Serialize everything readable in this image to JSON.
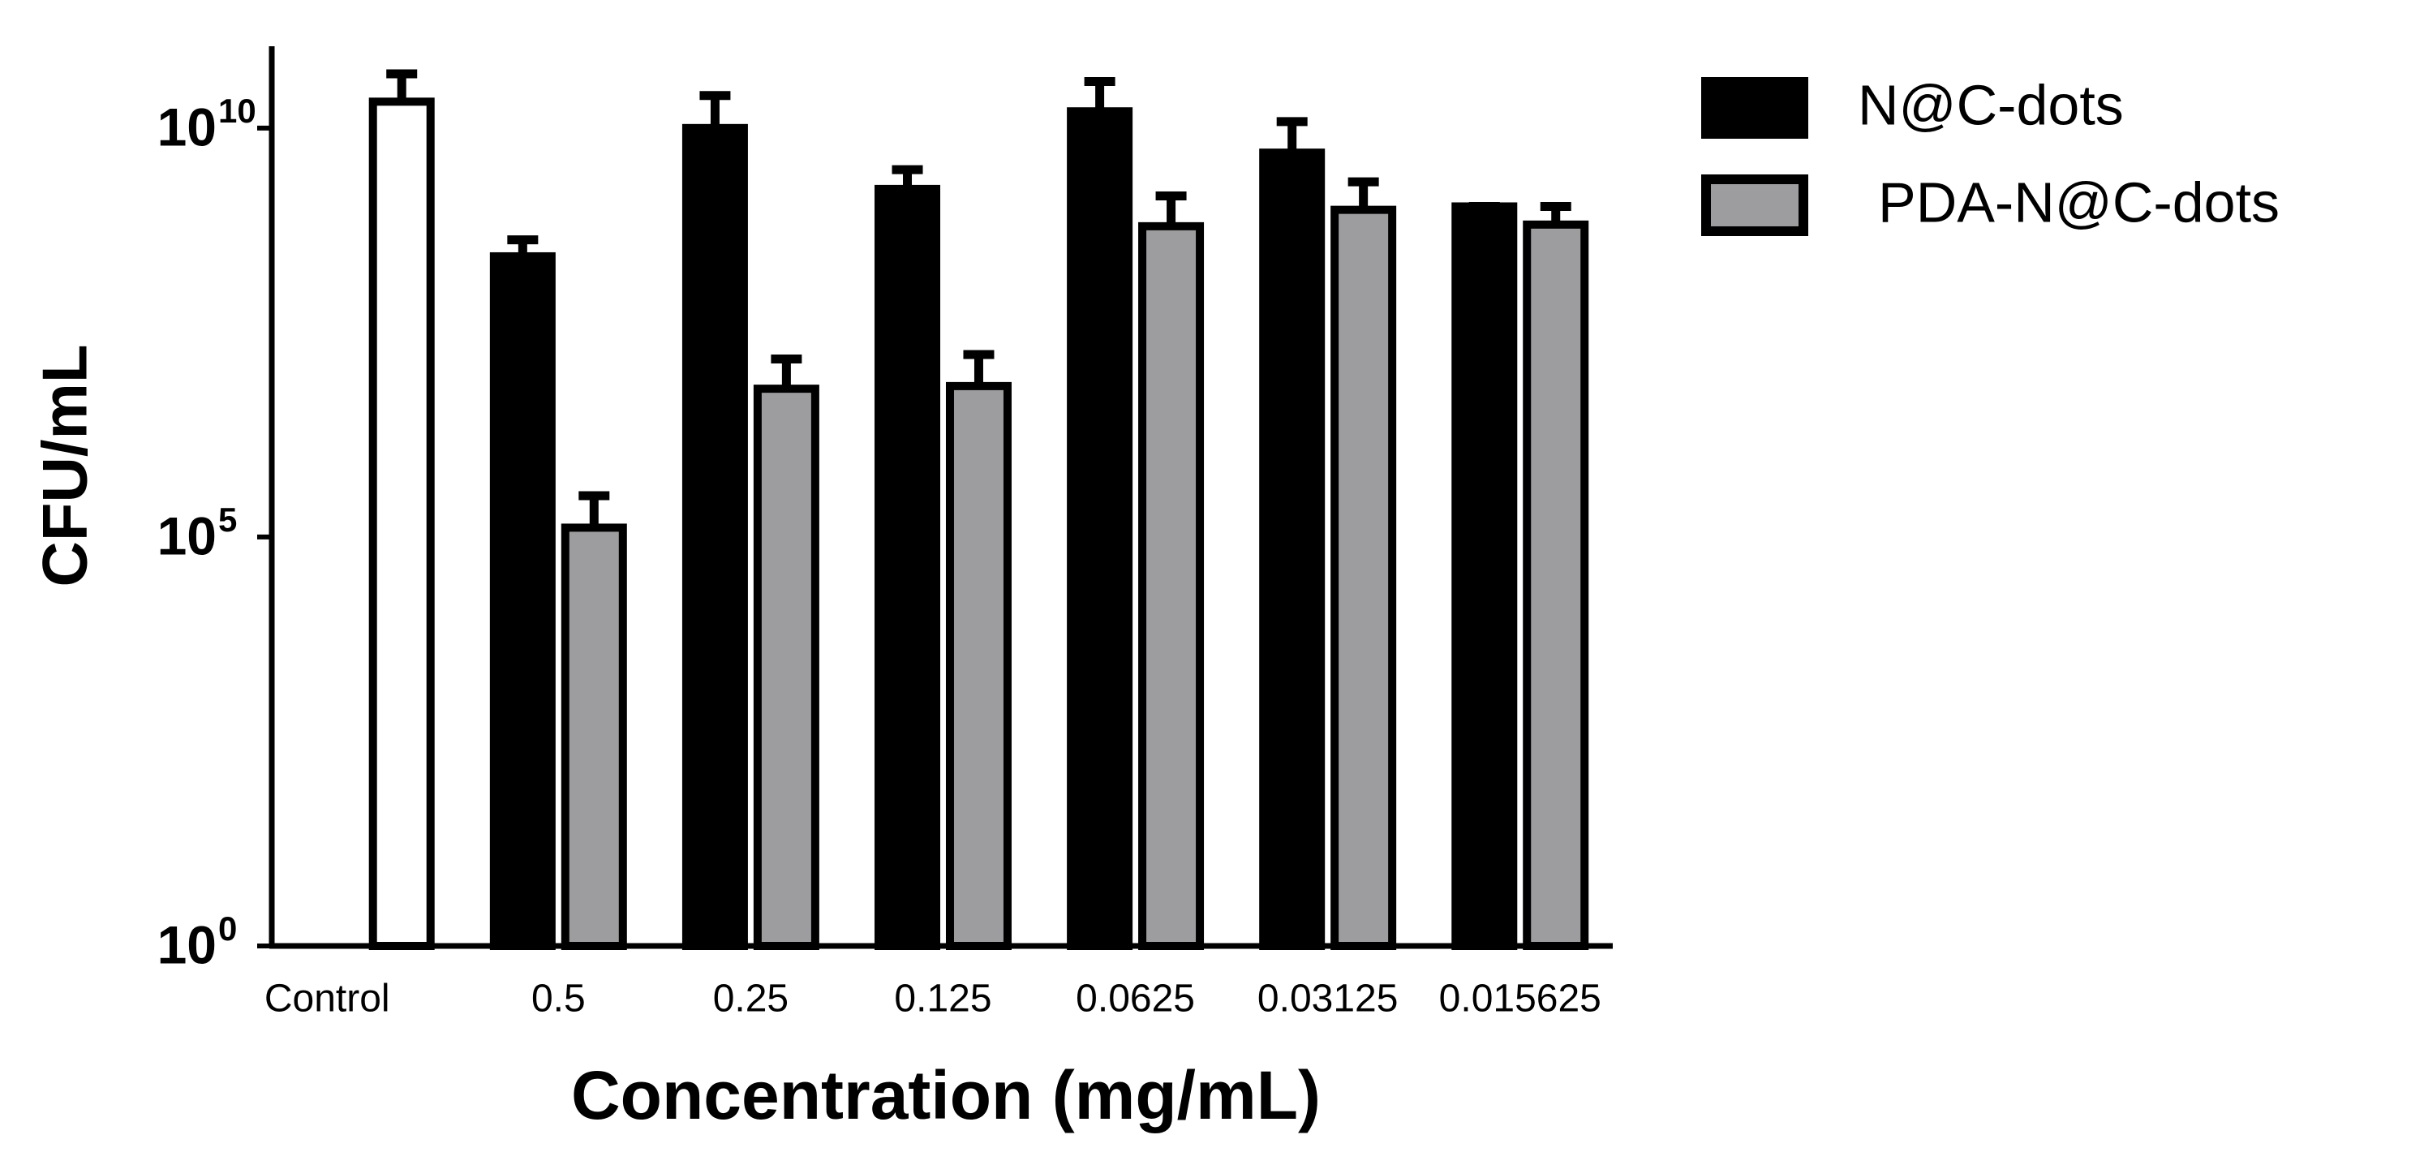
{
  "chart_data": {
    "type": "bar",
    "x_label": "Concentration (mg/mL)",
    "y_label": "CFU/mL",
    "categories": [
      "Control",
      "0.5",
      "0.25",
      "0.125",
      "0.0625",
      "0.03125",
      "0.015625"
    ],
    "control": {
      "value": 21000000000,
      "error": 25000000000,
      "color": "#ffffff"
    },
    "series": [
      {
        "name": "N@C-dots",
        "color": "#000000",
        "values": [
          null,
          270000000,
          10000000000,
          1800000000,
          16000000000,
          5000000000,
          1100000000
        ],
        "errors": [
          null,
          160000000,
          15000000000,
          1300000000,
          21000000000,
          7000000000,
          0
        ]
      },
      {
        "name": "PDA-N@C-dots",
        "color": "#9d9d9f",
        "values": [
          null,
          130000,
          6500000,
          7000000,
          630000000,
          1000000000,
          660000000
        ],
        "errors": [
          null,
          190000,
          8500000,
          10000000,
          850000000,
          1200000000,
          440000000
        ]
      }
    ],
    "log_scale": true,
    "ylim": [
      1,
      100000000000
    ],
    "yticks": [
      {
        "value": 1,
        "label": "10",
        "exponent": "0"
      },
      {
        "value": 100000,
        "label": "10",
        "exponent": "5"
      },
      {
        "value": 10000000000,
        "label": "10",
        "exponent": "10"
      }
    ],
    "legend": "right"
  }
}
